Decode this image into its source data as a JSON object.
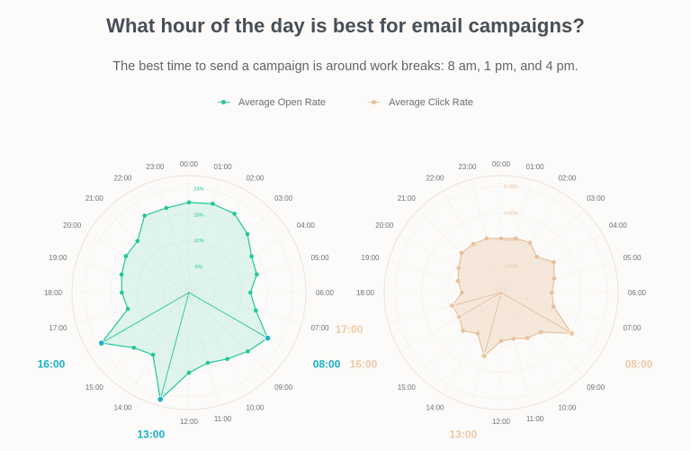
{
  "title": "What hour of the day is best for email campaigns?",
  "subtitle": "The best time to send a campaign is around work breaks: 8 am, 1 pm, and 4 pm.",
  "legend": {
    "open_label": "Average Open Rate",
    "click_label": "Average Click Rate"
  },
  "colors": {
    "open": "#21c79a",
    "open_peak": "#19b0c9",
    "click": "#e7c09c",
    "click_peak": "#ecc9a7",
    "grid": "#ece7e2"
  },
  "chart_data": [
    {
      "type": "radar",
      "series_name": "Average Open Rate",
      "categories": [
        "00:00",
        "01:00",
        "02:00",
        "03:00",
        "04:00",
        "05:00",
        "06:00",
        "07:00",
        "08:00",
        "09:00",
        "10:00",
        "11:00",
        "12:00",
        "13:00",
        "14:00",
        "15:00",
        "16:00",
        "17:00",
        "18:00",
        "19:00",
        "20:00",
        "21:00",
        "22:00",
        "23:00"
      ],
      "values": [
        20.8,
        21.2,
        21.0,
        19.1,
        16.7,
        16.2,
        14.2,
        16.0,
        21.0,
        19.2,
        17.7,
        16.8,
        18.5,
        25.5,
        16.6,
        18.0,
        23.3,
        14.6,
        15.5,
        16.1,
        16.8,
        16.8,
        20.5,
        20.2
      ],
      "rings": [
        6,
        12,
        18,
        24
      ],
      "ring_labels": [
        "6%",
        "12%",
        "18%",
        "24%"
      ],
      "highlights": [
        "08:00",
        "13:00",
        "16:00"
      ],
      "rmax": 27
    },
    {
      "type": "radar",
      "series_name": "Average Click Rate",
      "categories": [
        "00:00",
        "01:00",
        "02:00",
        "03:00",
        "04:00",
        "05:00",
        "06:00",
        "07:00",
        "08:00",
        "09:00",
        "10:00",
        "11:00",
        "12:00",
        "13:00",
        "14:00",
        "15:00",
        "16:00",
        "17:00",
        "18:00",
        "19:00",
        "20:00",
        "21:00",
        "22:00",
        "23:00"
      ],
      "values": [
        3.05,
        3.16,
        3.25,
        2.85,
        3.43,
        3.1,
        2.86,
        3.06,
        4.6,
        3.16,
        2.96,
        2.7,
        2.73,
        3.7,
        2.66,
        3.05,
        2.73,
        2.86,
        2.21,
        2.52,
        2.77,
        3.16,
        3.16,
        3.16
      ],
      "rings": [
        1.5,
        3.0,
        4.5,
        6.0
      ],
      "ring_labels": [
        "1.50%",
        "3.00%",
        "4.50%",
        "6.00%"
      ],
      "highlights": [
        "08:00",
        "13:00",
        "16:00",
        "17:00"
      ],
      "rmax": 6.6
    }
  ]
}
